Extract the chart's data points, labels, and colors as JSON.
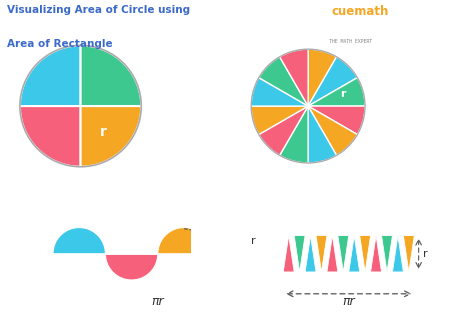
{
  "title_line1": "Visualizing Area of Circle using",
  "title_line2": "Area of Rectangle",
  "title_color": "#3B6AC8",
  "bg_color": "#ffffff",
  "colors": {
    "pink": "#F7607A",
    "blue": "#3CC8E8",
    "green": "#3DC890",
    "orange": "#F5A623"
  },
  "cuemath_text": "cuemath",
  "cuemath_sub": "THE MATH EXPERT",
  "cuemath_color": "#F5A623",
  "cuemath_sub_color": "#888888",
  "arrow_color": "#555555",
  "label_color": "#333333"
}
